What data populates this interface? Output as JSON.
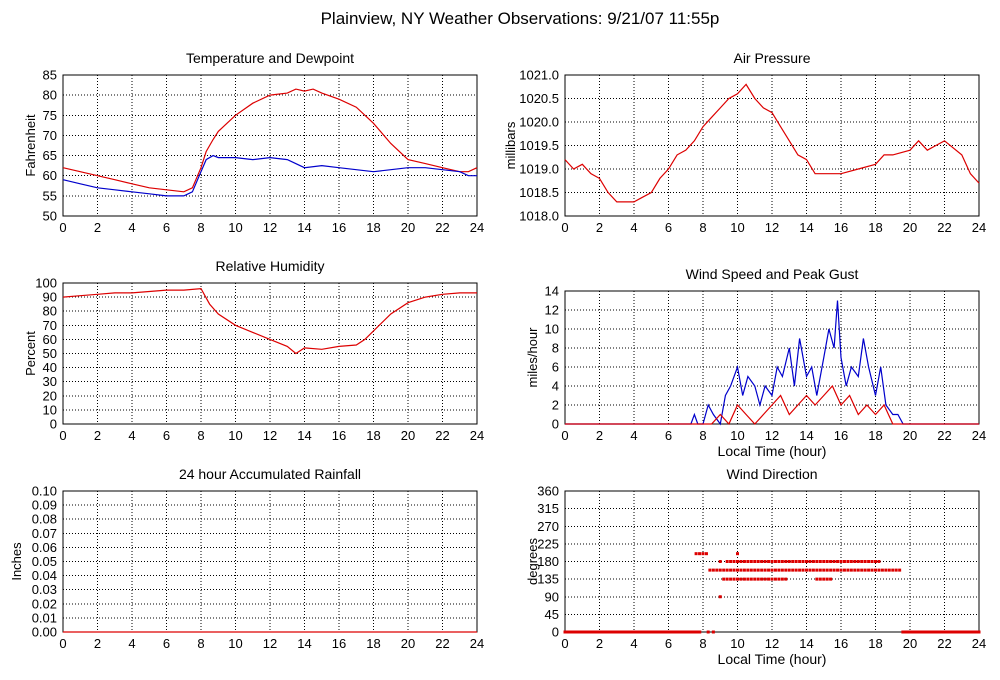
{
  "title": "Plainview, NY Weather Observations: 9/21/07 11:55p",
  "colors": {
    "red": "#dd0000",
    "blue": "#0000cc"
  },
  "chart_data": [
    {
      "id": "temp",
      "type": "line",
      "title": "Temperature and Dewpoint",
      "ylabel": "Fahrenheit",
      "xlabel": "",
      "xlim": [
        0,
        24
      ],
      "ylim": [
        50,
        85
      ],
      "xticks": [
        "0",
        "2",
        "4",
        "6",
        "8",
        "10",
        "12",
        "14",
        "16",
        "18",
        "20",
        "22",
        "24"
      ],
      "yticks": [
        "50",
        "55",
        "60",
        "65",
        "70",
        "75",
        "80",
        "85"
      ],
      "series": [
        {
          "color": "red",
          "x": [
            0,
            1,
            2,
            3,
            4,
            5,
            6,
            7,
            7.5,
            8,
            8.3,
            8.7,
            9,
            10,
            11,
            12,
            13,
            13.5,
            14,
            14.5,
            15,
            16,
            17,
            18,
            19,
            20,
            21,
            22,
            23,
            23.5,
            24
          ],
          "y": [
            62,
            61,
            60,
            59,
            58,
            57,
            56.5,
            56,
            57,
            62,
            66,
            69,
            71,
            75,
            78,
            80,
            80.5,
            81.5,
            81,
            81.5,
            80.5,
            79,
            77,
            73,
            68,
            64,
            63,
            62,
            61,
            61,
            62
          ]
        },
        {
          "color": "blue",
          "x": [
            0,
            1,
            2,
            3,
            4,
            5,
            6,
            7,
            7.5,
            8,
            8.3,
            8.7,
            9,
            10,
            11,
            12,
            13,
            14,
            15,
            16,
            17,
            18,
            19,
            20,
            21,
            22,
            23,
            23.5,
            24
          ],
          "y": [
            59,
            58,
            57,
            56.5,
            56,
            55.5,
            55,
            55,
            56,
            61,
            64,
            65,
            64.5,
            64.5,
            64,
            64.5,
            64,
            62,
            62.5,
            62,
            61.5,
            61,
            61.5,
            62,
            62,
            61.5,
            61,
            60,
            60
          ]
        }
      ]
    },
    {
      "id": "pressure",
      "type": "line",
      "title": "Air Pressure",
      "ylabel": "millibars",
      "xlabel": "",
      "xlim": [
        0,
        24
      ],
      "ylim": [
        1018.0,
        1021.0
      ],
      "xticks": [
        "0",
        "2",
        "4",
        "6",
        "8",
        "10",
        "12",
        "14",
        "16",
        "18",
        "20",
        "22",
        "24"
      ],
      "yticks": [
        "1018.0",
        "1018.5",
        "1019.0",
        "1019.5",
        "1020.0",
        "1020.5",
        "1021.0"
      ],
      "series": [
        {
          "color": "red",
          "x": [
            0,
            0.5,
            1,
            1.5,
            2,
            2.5,
            3,
            3.5,
            4,
            4.5,
            5,
            5.5,
            6,
            6.5,
            7,
            7.5,
            8,
            8.5,
            9,
            9.5,
            10,
            10.5,
            11,
            11.5,
            12,
            12.5,
            13,
            13.5,
            14,
            14.5,
            15,
            16,
            17,
            18,
            18.5,
            19,
            20,
            20.5,
            21,
            21.5,
            22,
            23,
            23.5,
            24
          ],
          "y": [
            1019.2,
            1019.0,
            1019.1,
            1018.9,
            1018.8,
            1018.5,
            1018.3,
            1018.3,
            1018.3,
            1018.4,
            1018.5,
            1018.8,
            1019.0,
            1019.3,
            1019.4,
            1019.6,
            1019.9,
            1020.1,
            1020.3,
            1020.5,
            1020.6,
            1020.8,
            1020.5,
            1020.3,
            1020.2,
            1019.9,
            1019.6,
            1019.3,
            1019.2,
            1018.9,
            1018.9,
            1018.9,
            1019.0,
            1019.1,
            1019.3,
            1019.3,
            1019.4,
            1019.6,
            1019.4,
            1019.5,
            1019.6,
            1019.3,
            1018.9,
            1018.7
          ]
        }
      ]
    },
    {
      "id": "humidity",
      "type": "line",
      "title": "Relative Humidity",
      "ylabel": "Percent",
      "xlabel": "",
      "xlim": [
        0,
        24
      ],
      "ylim": [
        0,
        100
      ],
      "xticks": [
        "0",
        "2",
        "4",
        "6",
        "8",
        "10",
        "12",
        "14",
        "16",
        "18",
        "20",
        "22",
        "24"
      ],
      "yticks": [
        "0",
        "10",
        "20",
        "30",
        "40",
        "50",
        "60",
        "70",
        "80",
        "90",
        "100"
      ],
      "series": [
        {
          "color": "red",
          "x": [
            0,
            1,
            2,
            3,
            4,
            5,
            6,
            7,
            8,
            8.5,
            9,
            10,
            11,
            12,
            13,
            13.5,
            14,
            15,
            16,
            17,
            17.5,
            18,
            19,
            20,
            21,
            22,
            23,
            24
          ],
          "y": [
            90,
            91,
            92,
            93,
            93,
            94,
            95,
            95,
            96,
            85,
            78,
            70,
            65,
            60,
            55,
            50,
            54,
            53,
            55,
            56,
            60,
            66,
            78,
            86,
            90,
            92,
            93,
            93
          ]
        }
      ]
    },
    {
      "id": "wind",
      "type": "line",
      "title": "Wind Speed and Peak Gust",
      "ylabel": "miles/hour",
      "xlabel": "Local Time (hour)",
      "xlim": [
        0,
        24
      ],
      "ylim": [
        0,
        14
      ],
      "xticks": [
        "0",
        "2",
        "4",
        "6",
        "8",
        "10",
        "12",
        "14",
        "16",
        "18",
        "20",
        "22",
        "24"
      ],
      "yticks": [
        "0",
        "2",
        "4",
        "6",
        "8",
        "10",
        "12",
        "14"
      ],
      "series": [
        {
          "color": "blue",
          "x": [
            0,
            7.3,
            7.5,
            7.7,
            8,
            8.3,
            8.6,
            9,
            9.3,
            9.6,
            10,
            10.3,
            10.6,
            11,
            11.3,
            11.6,
            12,
            12.3,
            12.6,
            13,
            13.3,
            13.6,
            14,
            14.3,
            14.6,
            15,
            15.3,
            15.6,
            15.8,
            16,
            16.3,
            16.6,
            17,
            17.3,
            17.6,
            18,
            18.3,
            18.6,
            19,
            19.3,
            19.6,
            20,
            24
          ],
          "y": [
            0,
            0,
            1,
            0,
            0,
            2,
            1,
            0,
            3,
            4,
            6,
            3,
            5,
            4,
            2,
            4,
            3,
            6,
            5,
            8,
            4,
            9,
            5,
            6,
            3,
            7,
            10,
            8,
            13,
            7,
            4,
            6,
            5,
            9,
            6,
            3,
            6,
            2,
            1,
            1,
            0,
            0,
            0
          ]
        },
        {
          "color": "red",
          "x": [
            0,
            8,
            8.5,
            9,
            9.5,
            10,
            10.5,
            11,
            11.5,
            12,
            12.5,
            13,
            13.5,
            14,
            14.5,
            15,
            15.5,
            16,
            16.5,
            17,
            17.5,
            18,
            18.5,
            19,
            24
          ],
          "y": [
            0,
            0,
            0,
            1,
            0,
            2,
            1,
            0,
            1,
            2,
            3,
            1,
            2,
            3,
            2,
            3,
            4,
            2,
            3,
            1,
            2,
            1,
            2,
            0,
            0
          ]
        }
      ]
    },
    {
      "id": "rain",
      "type": "line",
      "title": "24 hour Accumulated Rainfall",
      "ylabel": "Inches",
      "xlabel": "",
      "xlim": [
        0,
        24
      ],
      "ylim": [
        0,
        0.1
      ],
      "xticks": [
        "0",
        "2",
        "4",
        "6",
        "8",
        "10",
        "12",
        "14",
        "16",
        "18",
        "20",
        "22",
        "24"
      ],
      "yticks": [
        "0.00",
        "0.01",
        "0.02",
        "0.03",
        "0.04",
        "0.05",
        "0.06",
        "0.07",
        "0.08",
        "0.09",
        "0.10"
      ],
      "series": [
        {
          "color": "red",
          "x": [
            0,
            24
          ],
          "y": [
            0,
            0
          ]
        }
      ]
    },
    {
      "id": "direction",
      "type": "scatter",
      "title": "Wind Direction",
      "ylabel": "degrees",
      "xlabel": "Local Time (hour)",
      "xlim": [
        0,
        24
      ],
      "ylim": [
        0,
        360
      ],
      "xticks": [
        "0",
        "2",
        "4",
        "6",
        "8",
        "10",
        "12",
        "14",
        "16",
        "18",
        "20",
        "22",
        "24"
      ],
      "yticks": [
        "0",
        "45",
        "90",
        "135",
        "180",
        "225",
        "270",
        "315",
        "360"
      ],
      "series": [
        {
          "color": "red",
          "x": [
            0,
            0.5,
            1,
            1.5,
            2,
            2.5,
            3,
            3.5,
            4,
            4.5,
            5,
            5.5,
            6,
            6.5,
            7,
            7.5,
            8.3,
            8.6,
            7.6,
            7.8,
            8.0,
            8.2,
            8.4,
            8.6,
            8.8,
            9.0,
            9.2,
            9.4,
            9.6,
            9.8,
            10.0,
            10.2,
            10.4,
            10.6,
            10.8,
            11.0,
            11.2,
            11.4,
            11.6,
            11.8,
            12.0,
            12.2,
            12.4,
            12.6,
            12.8,
            13.0,
            13.2,
            13.4,
            13.6,
            13.8,
            14.0,
            14.2,
            14.4,
            14.6,
            14.8,
            15.0,
            15.2,
            15.4,
            15.6,
            15.8,
            16.0,
            16.2,
            16.4,
            16.6,
            16.8,
            17.0,
            17.2,
            17.4,
            17.6,
            17.8,
            18.0,
            18.2,
            18.4,
            18.6,
            18.8,
            19.0,
            19.2,
            19.4,
            9.0,
            9.4,
            9.6,
            9.8,
            10.0,
            10.2,
            10.4,
            10.6,
            10.8,
            11.0,
            11.2,
            11.4,
            11.6,
            11.8,
            12.0,
            12.2,
            12.4,
            12.6,
            12.8,
            13.0,
            13.2,
            13.4,
            13.6,
            13.8,
            14.0,
            14.2,
            14.4,
            14.6,
            14.8,
            15.0,
            15.2,
            15.4,
            15.6,
            15.8,
            16.0,
            16.2,
            16.4,
            16.6,
            16.8,
            17.0,
            17.2,
            17.4,
            17.6,
            17.8,
            18.0,
            18.2,
            9.2,
            9.4,
            9.6,
            9.8,
            10.0,
            10.2,
            10.4,
            10.6,
            10.8,
            11.0,
            11.2,
            11.4,
            11.6,
            11.8,
            12.0,
            12.2,
            12.4,
            12.6,
            12.8,
            14.6,
            14.8,
            15.0,
            15.2,
            15.4,
            9.0,
            10.0,
            19.6,
            20,
            20.5,
            21,
            21.5,
            22,
            22.5,
            23,
            23.5,
            24
          ],
          "y": [
            0,
            0,
            0,
            0,
            0,
            0,
            0,
            0,
            0,
            0,
            0,
            0,
            0,
            0,
            0,
            0,
            0,
            0,
            200,
            200,
            200,
            200,
            158,
            158,
            158,
            158,
            158,
            158,
            158,
            158,
            158,
            158,
            158,
            158,
            158,
            158,
            158,
            158,
            158,
            158,
            158,
            158,
            158,
            158,
            158,
            158,
            158,
            158,
            158,
            158,
            158,
            158,
            158,
            158,
            158,
            158,
            158,
            158,
            158,
            158,
            158,
            158,
            158,
            158,
            158,
            158,
            158,
            158,
            158,
            158,
            158,
            158,
            158,
            158,
            158,
            158,
            158,
            158,
            180,
            180,
            180,
            180,
            180,
            180,
            180,
            180,
            180,
            180,
            180,
            180,
            180,
            180,
            180,
            180,
            180,
            180,
            180,
            180,
            180,
            180,
            180,
            180,
            180,
            180,
            180,
            180,
            180,
            180,
            180,
            180,
            180,
            180,
            180,
            180,
            180,
            180,
            180,
            180,
            180,
            180,
            180,
            180,
            180,
            180,
            135,
            135,
            135,
            135,
            135,
            135,
            135,
            135,
            135,
            135,
            135,
            135,
            135,
            135,
            135,
            135,
            135,
            135,
            135,
            135,
            135,
            135,
            135,
            135,
            90,
            200,
            0,
            0,
            0,
            0,
            0,
            0,
            0,
            0,
            0,
            0
          ]
        }
      ]
    }
  ]
}
